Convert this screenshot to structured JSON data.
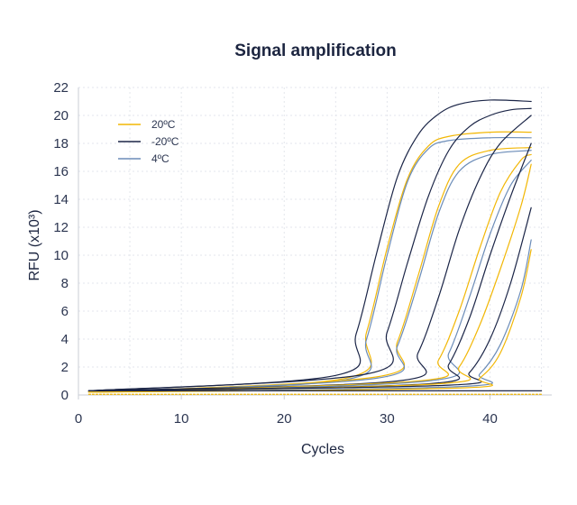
{
  "chart_data": {
    "type": "line",
    "title": "Signal amplification",
    "xlabel": "Cycles",
    "ylabel": "RFU (x10³)",
    "xlim": [
      0,
      46
    ],
    "ylim": [
      0,
      22
    ],
    "xticks": [
      0,
      10,
      20,
      30,
      40
    ],
    "yticks": [
      0,
      2,
      4,
      6,
      8,
      10,
      12,
      14,
      16,
      18,
      20,
      22
    ],
    "grid": true,
    "legend_position": "top-left",
    "colors": {
      "20°C": "#f2b705",
      "-20°C": "#1b2547",
      "4°C": "#6b8cb8"
    },
    "legend": [
      {
        "label": "20ºC",
        "key": "20°C"
      },
      {
        "label": "-20ºC",
        "key": "-20°C"
      },
      {
        "label": "4ºC",
        "key": "4°C"
      }
    ],
    "series": [
      {
        "group": "-20°C",
        "x": [
          1,
          25,
          27,
          29,
          31,
          33,
          35,
          37,
          40,
          44
        ],
        "y": [
          0.3,
          1.4,
          4.4,
          10.2,
          15.6,
          18.6,
          20.1,
          20.8,
          21.1,
          21.0
        ]
      },
      {
        "group": "20°C",
        "x": [
          1,
          26,
          28,
          30,
          32,
          34,
          36,
          40,
          44
        ],
        "y": [
          0.2,
          1.2,
          4.5,
          10.5,
          15.5,
          17.8,
          18.5,
          18.8,
          18.8
        ]
      },
      {
        "group": "4°C",
        "x": [
          1,
          26,
          28,
          30,
          32,
          34,
          36,
          40,
          44
        ],
        "y": [
          0.2,
          1.1,
          4.0,
          10.0,
          15.3,
          17.6,
          18.2,
          18.4,
          18.4
        ]
      },
      {
        "group": "-20°C",
        "x": [
          1,
          28,
          30,
          32,
          34,
          36,
          38,
          40,
          42,
          44
        ],
        "y": [
          0.3,
          1.5,
          4.5,
          9.5,
          14.2,
          17.5,
          19.2,
          20.0,
          20.4,
          20.5
        ]
      },
      {
        "group": "20°C",
        "x": [
          1,
          29,
          31,
          33,
          35,
          37,
          40,
          44
        ],
        "y": [
          0.2,
          1.3,
          3.8,
          8.5,
          13.5,
          16.5,
          17.5,
          17.7
        ]
      },
      {
        "group": "4°C",
        "x": [
          1,
          29,
          31,
          33,
          35,
          37,
          40,
          44
        ],
        "y": [
          0.2,
          1.2,
          3.5,
          8.0,
          13.0,
          16.0,
          17.2,
          17.5
        ]
      },
      {
        "group": "-20°C",
        "x": [
          1,
          31,
          33,
          35,
          37,
          39,
          41,
          44
        ],
        "y": [
          0.3,
          1.0,
          3.0,
          7.0,
          11.8,
          15.5,
          18.0,
          20.0
        ]
      },
      {
        "group": "20°C",
        "x": [
          1,
          33,
          35,
          37,
          39,
          41,
          43,
          44
        ],
        "y": [
          0.2,
          1.0,
          2.5,
          6.0,
          10.5,
          14.5,
          16.8,
          17.2
        ]
      },
      {
        "group": "4°C",
        "x": [
          1,
          34,
          36,
          38,
          40,
          42,
          44
        ],
        "y": [
          0.2,
          1.0,
          3.0,
          7.0,
          11.5,
          15.0,
          16.8
        ]
      },
      {
        "group": "-20°C",
        "x": [
          1,
          34,
          36,
          38,
          40,
          42,
          44
        ],
        "y": [
          0.3,
          0.8,
          2.2,
          5.5,
          10.0,
          14.2,
          18.0
        ]
      },
      {
        "group": "20°C",
        "x": [
          1,
          35,
          37,
          39,
          41,
          43,
          44
        ],
        "y": [
          0.2,
          0.8,
          2.0,
          5.0,
          9.0,
          13.5,
          16.5
        ]
      },
      {
        "group": "-20°C",
        "x": [
          1,
          36,
          38,
          40,
          42,
          44
        ],
        "y": [
          0.3,
          0.7,
          1.6,
          4.0,
          8.0,
          13.4
        ]
      },
      {
        "group": "4°C",
        "x": [
          1,
          37,
          39,
          41,
          43,
          44
        ],
        "y": [
          0.2,
          0.6,
          1.5,
          3.6,
          7.5,
          11.1
        ]
      },
      {
        "group": "20°C",
        "x": [
          1,
          37,
          39,
          41,
          43,
          44
        ],
        "y": [
          0.2,
          0.5,
          1.2,
          3.0,
          7.0,
          10.4
        ]
      },
      {
        "group": "-20°C",
        "x": [
          1,
          45
        ],
        "y": [
          0.3,
          0.3
        ]
      },
      {
        "group": "20°C",
        "x": [
          1,
          45
        ],
        "y": [
          0.05,
          0.05
        ]
      }
    ]
  }
}
